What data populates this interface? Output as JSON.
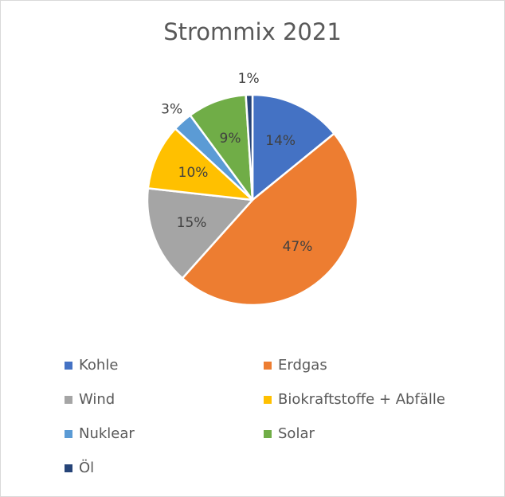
{
  "chart_data": {
    "type": "pie",
    "title": "Strommix 2021",
    "categories": [
      "Kohle",
      "Erdgas",
      "Wind",
      "Biokraftstoffe + Abfälle",
      "Nuklear",
      "Solar",
      "Öl"
    ],
    "values": [
      14,
      47,
      15,
      10,
      3,
      9,
      1
    ],
    "unit": "%",
    "data_labels": [
      "14%",
      "47%",
      "15%",
      "10%",
      "3%",
      "9%",
      "1%"
    ],
    "colors": [
      "#4472c4",
      "#ed7d31",
      "#a5a5a5",
      "#ffc000",
      "#5b9bd5",
      "#70ad47",
      "#264478"
    ],
    "start_angle": "12 o'clock",
    "direction": "clockwise",
    "legend_position": "bottom",
    "legend": [
      {
        "label": "Kohle",
        "color": "#4472c4"
      },
      {
        "label": "Erdgas",
        "color": "#ed7d31"
      },
      {
        "label": "Wind",
        "color": "#a5a5a5"
      },
      {
        "label": "Biokraftstoffe + Abfälle",
        "color": "#ffc000"
      },
      {
        "label": "Nuklear",
        "color": "#5b9bd5"
      },
      {
        "label": "Solar",
        "color": "#70ad47"
      },
      {
        "label": "Öl",
        "color": "#264478"
      }
    ]
  }
}
